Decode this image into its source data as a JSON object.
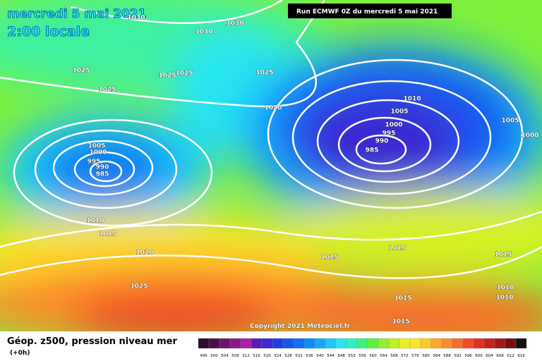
{
  "header": {
    "date": "mercredi 5 mai 2021",
    "local_time": "2:00 locale",
    "run": "Run ECMWF 0Z du mercredi 5 mai 2021"
  },
  "copyright": "Copyright 2021 Meteociel.fr",
  "legend": {
    "title": "Géop. z500, pression niveau mer",
    "step": "(+0h)",
    "labels": [
      "496",
      "500",
      "504",
      "508",
      "512",
      "516",
      "520",
      "524",
      "528",
      "532",
      "536",
      "540",
      "544",
      "548",
      "552",
      "556",
      "560",
      "564",
      "568",
      "572",
      "576",
      "580",
      "584",
      "588",
      "592",
      "596",
      "600",
      "604",
      "608",
      "612",
      "616"
    ],
    "colors": [
      "#2b0a2b",
      "#4a0f4a",
      "#6b146b",
      "#8a1a8a",
      "#a820a8",
      "#5a1cb4",
      "#3a28d0",
      "#1e3ce6",
      "#1456f0",
      "#1070f4",
      "#0c8cf8",
      "#14a8fc",
      "#1ec8fc",
      "#28e4f0",
      "#30f0c0",
      "#40f080",
      "#60f040",
      "#90f030",
      "#c0f020",
      "#e8f020",
      "#fce428",
      "#fcc82c",
      "#fcaa2c",
      "#fc8c2c",
      "#f86c2c",
      "#f04c28",
      "#e03024",
      "#c82020",
      "#a01818",
      "#701010",
      "#101010"
    ]
  },
  "isobars": [
    "1030",
    "1030",
    "1030",
    "1025",
    "1025",
    "1025",
    "1025",
    "1025",
    "1020",
    "1010",
    "1005",
    "1000",
    "995",
    "990",
    "985",
    "1005",
    "1000",
    "1005",
    "1000",
    "995",
    "990",
    "985",
    "1010",
    "1015",
    "1020",
    "1015",
    "1015",
    "1015",
    "1025",
    "1010",
    "1015",
    "1010",
    "1015"
  ]
}
